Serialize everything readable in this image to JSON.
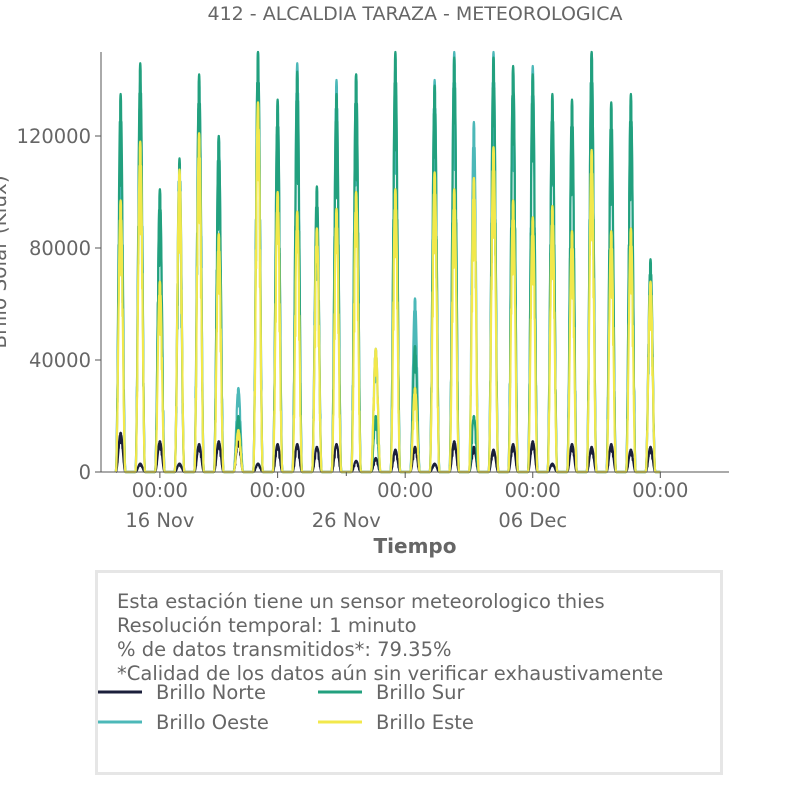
{
  "chart_data": {
    "type": "line",
    "title": "412 - ALCALDIA TARAZA - METEOROLOGICA",
    "xlabel": "Tiempo",
    "ylabel": "Brillo Solar (Klux)",
    "ylim": [
      0,
      150000
    ],
    "xlim": [
      "2023-11-13T12:00",
      "2023-12-15T12:00"
    ],
    "y_ticks": [
      0,
      40000,
      80000,
      120000
    ],
    "y_tick_labels": [
      "0",
      "40000",
      "80000",
      "120000"
    ],
    "x_ticks": [
      {
        "time": "2023-11-16T12:00",
        "major": "00:00",
        "minor": "16 Nov"
      },
      {
        "time": "2023-11-22T12:00",
        "major": "00:00",
        "minor": ""
      },
      {
        "time": "2023-11-26T00:00",
        "major": "",
        "minor": "26 Nov"
      },
      {
        "time": "2023-11-29T00:00",
        "major": "00:00",
        "minor": ""
      },
      {
        "time": "2023-12-05T12:00",
        "major": "00:00",
        "minor": "06 Dec"
      },
      {
        "time": "2023-12-12T00:00",
        "major": "00:00",
        "minor": ""
      }
    ],
    "grid": false,
    "legend_position": "bottom",
    "series": [
      {
        "name": "Brillo Norte",
        "color": "#1b1f3b",
        "day_peaks": [
          14000,
          3000,
          11000,
          3000,
          10000,
          11000,
          12000,
          3000,
          10000,
          10000,
          9000,
          10000,
          4000,
          5000,
          8000,
          9000,
          3000,
          11000,
          9000,
          8000,
          10000,
          11000,
          3000,
          10000,
          9000,
          10000,
          8000,
          9000
        ]
      },
      {
        "name": "Brillo Sur",
        "color": "#22a07e",
        "day_peaks": [
          135000,
          146000,
          101000,
          112000,
          142000,
          120000,
          20000,
          150000,
          133000,
          143000,
          102000,
          135000,
          142000,
          20000,
          150000,
          45000,
          138000,
          148000,
          20000,
          148000,
          145000,
          142000,
          135000,
          133000,
          150000,
          132000,
          135000,
          76000
        ]
      },
      {
        "name": "Brillo Oeste",
        "color": "#4cb8b8",
        "day_peaks": [
          121000,
          140000,
          100000,
          100000,
          140000,
          120000,
          30000,
          150000,
          130000,
          146000,
          95000,
          140000,
          142000,
          44000,
          145000,
          62000,
          140000,
          150000,
          125000,
          150000,
          144000,
          145000,
          130000,
          127000,
          150000,
          123000,
          133000,
          70000
        ]
      },
      {
        "name": "Brillo Este",
        "color": "#f2e84b",
        "day_peaks": [
          97000,
          118000,
          68000,
          108000,
          121000,
          85000,
          15000,
          132000,
          100000,
          93000,
          87000,
          94000,
          100000,
          44000,
          101000,
          30000,
          107000,
          101000,
          105000,
          116000,
          97000,
          91000,
          95000,
          86000,
          115000,
          86000,
          87000,
          68000
        ]
      }
    ],
    "days_start": "2023-11-14"
  },
  "info_box": {
    "line1": "Esta estación tiene un sensor meteorologico thies",
    "line2": "Resolución temporal: 1 minuto",
    "line3": "% de datos transmitidos*: 79.35%",
    "line4": "*Calidad de los datos aún sin verificar exhaustivamente"
  },
  "legend": [
    {
      "label": "Brillo Norte",
      "color": "#1b1f3b"
    },
    {
      "label": "Brillo Sur",
      "color": "#22a07e"
    },
    {
      "label": "Brillo Oeste",
      "color": "#4cb8b8"
    },
    {
      "label": "Brillo Este",
      "color": "#f2e84b"
    }
  ]
}
